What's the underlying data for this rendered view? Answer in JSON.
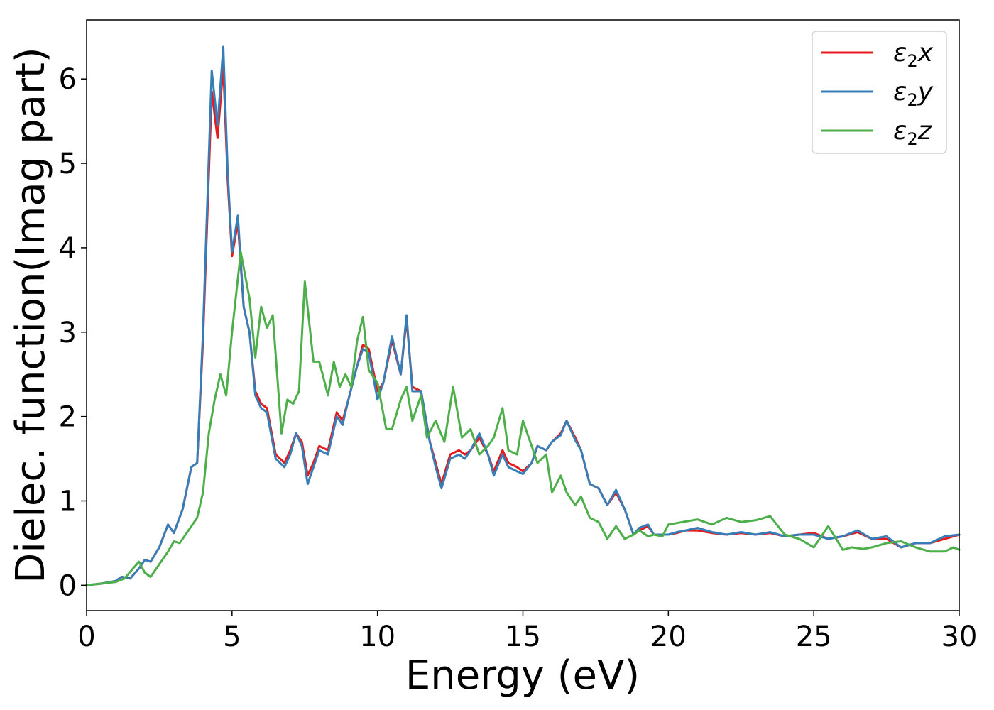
{
  "chart_data": {
    "type": "line",
    "xlabel": "Energy (eV)",
    "ylabel": "Dielec. function(Imag part)",
    "xlim": [
      0,
      30
    ],
    "ylim": [
      -0.3,
      6.7
    ],
    "xticks": [
      "0",
      "5",
      "10",
      "15",
      "20",
      "25",
      "30"
    ],
    "yticks": [
      "0",
      "1",
      "2",
      "3",
      "4",
      "5",
      "6"
    ],
    "grid": false,
    "legend_position": "top-right",
    "series": [
      {
        "name": "ε₂x",
        "legend": {
          "base": "ε",
          "sub": "2",
          "tail": "x"
        },
        "color": "#e41a1c",
        "x": [
          0,
          0.5,
          1.0,
          1.2,
          1.5,
          1.8,
          2.0,
          2.2,
          2.5,
          2.8,
          3.0,
          3.3,
          3.6,
          3.8,
          4.0,
          4.3,
          4.5,
          4.7,
          4.85,
          5.0,
          5.2,
          5.4,
          5.6,
          5.8,
          6.0,
          6.2,
          6.5,
          6.8,
          7.0,
          7.2,
          7.4,
          7.6,
          7.8,
          8.0,
          8.3,
          8.6,
          8.8,
          9.0,
          9.3,
          9.5,
          9.7,
          10.0,
          10.2,
          10.5,
          10.8,
          11.0,
          11.2,
          11.5,
          11.8,
          12.0,
          12.2,
          12.5,
          12.8,
          13.0,
          13.2,
          13.5,
          13.8,
          14.0,
          14.3,
          14.5,
          14.8,
          15.0,
          15.3,
          15.5,
          15.8,
          16.0,
          16.3,
          16.5,
          16.8,
          17.0,
          17.3,
          17.6,
          17.9,
          18.2,
          18.5,
          18.8,
          19.0,
          19.3,
          19.5,
          19.8,
          20.0,
          20.3,
          20.6,
          21.0,
          21.5,
          22.0,
          22.5,
          23.0,
          23.5,
          24.0,
          24.5,
          25.0,
          25.5,
          26.0,
          26.5,
          27.0,
          27.5,
          28.0,
          28.5,
          29.0,
          29.5,
          30.0
        ],
        "y": [
          0.0,
          0.02,
          0.05,
          0.1,
          0.08,
          0.2,
          0.3,
          0.28,
          0.45,
          0.72,
          0.62,
          0.9,
          1.4,
          1.45,
          2.9,
          5.85,
          5.3,
          6.15,
          4.8,
          3.9,
          4.3,
          3.3,
          3.0,
          2.3,
          2.15,
          2.1,
          1.55,
          1.45,
          1.6,
          1.8,
          1.7,
          1.3,
          1.45,
          1.65,
          1.6,
          2.05,
          1.95,
          2.2,
          2.6,
          2.85,
          2.8,
          2.3,
          2.4,
          2.9,
          2.5,
          3.15,
          2.35,
          2.3,
          1.7,
          1.45,
          1.2,
          1.55,
          1.6,
          1.55,
          1.6,
          1.75,
          1.55,
          1.35,
          1.6,
          1.45,
          1.4,
          1.35,
          1.45,
          1.65,
          1.6,
          1.7,
          1.8,
          1.95,
          1.75,
          1.6,
          1.2,
          1.15,
          0.95,
          1.1,
          0.9,
          0.6,
          0.65,
          0.7,
          0.6,
          0.6,
          0.6,
          0.62,
          0.65,
          0.65,
          0.62,
          0.6,
          0.62,
          0.6,
          0.62,
          0.58,
          0.6,
          0.62,
          0.55,
          0.58,
          0.63,
          0.55,
          0.55,
          0.45,
          0.5,
          0.5,
          0.55,
          0.6
        ]
      },
      {
        "name": "ε₂y",
        "legend": {
          "base": "ε",
          "sub": "2",
          "tail": "y"
        },
        "color": "#377eb8",
        "x": [
          0,
          0.5,
          1.0,
          1.2,
          1.5,
          1.8,
          2.0,
          2.2,
          2.5,
          2.8,
          3.0,
          3.3,
          3.6,
          3.8,
          4.0,
          4.3,
          4.5,
          4.7,
          4.85,
          5.0,
          5.2,
          5.4,
          5.6,
          5.8,
          6.0,
          6.2,
          6.5,
          6.8,
          7.0,
          7.2,
          7.4,
          7.6,
          7.8,
          8.0,
          8.3,
          8.6,
          8.8,
          9.0,
          9.3,
          9.5,
          9.7,
          10.0,
          10.2,
          10.5,
          10.8,
          11.0,
          11.2,
          11.5,
          11.8,
          12.0,
          12.2,
          12.5,
          12.8,
          13.0,
          13.2,
          13.5,
          13.8,
          14.0,
          14.3,
          14.5,
          14.8,
          15.0,
          15.3,
          15.5,
          15.8,
          16.0,
          16.3,
          16.5,
          16.8,
          17.0,
          17.3,
          17.6,
          17.9,
          18.2,
          18.5,
          18.8,
          19.0,
          19.3,
          19.5,
          19.8,
          20.0,
          20.3,
          20.6,
          21.0,
          21.5,
          22.0,
          22.5,
          23.0,
          23.5,
          24.0,
          24.5,
          25.0,
          25.5,
          26.0,
          26.5,
          27.0,
          27.5,
          28.0,
          28.5,
          29.0,
          29.5,
          30.0
        ],
        "y": [
          0.0,
          0.02,
          0.05,
          0.1,
          0.08,
          0.2,
          0.3,
          0.28,
          0.45,
          0.72,
          0.62,
          0.9,
          1.4,
          1.45,
          3.0,
          6.1,
          5.45,
          6.38,
          4.9,
          3.95,
          4.38,
          3.3,
          3.0,
          2.25,
          2.1,
          2.05,
          1.5,
          1.4,
          1.55,
          1.8,
          1.65,
          1.2,
          1.4,
          1.6,
          1.55,
          2.0,
          1.9,
          2.2,
          2.6,
          2.8,
          2.75,
          2.2,
          2.4,
          2.95,
          2.5,
          3.2,
          2.3,
          2.3,
          1.7,
          1.4,
          1.15,
          1.5,
          1.55,
          1.5,
          1.6,
          1.8,
          1.55,
          1.3,
          1.55,
          1.4,
          1.35,
          1.32,
          1.45,
          1.65,
          1.6,
          1.7,
          1.78,
          1.95,
          1.72,
          1.6,
          1.2,
          1.15,
          0.95,
          1.13,
          0.9,
          0.6,
          0.68,
          0.72,
          0.6,
          0.6,
          0.6,
          0.63,
          0.65,
          0.68,
          0.63,
          0.6,
          0.63,
          0.6,
          0.63,
          0.58,
          0.6,
          0.6,
          0.55,
          0.58,
          0.65,
          0.55,
          0.58,
          0.45,
          0.5,
          0.5,
          0.58,
          0.6
        ]
      },
      {
        "name": "ε₂z",
        "legend": {
          "base": "ε",
          "sub": "2",
          "tail": "z"
        },
        "color": "#4daf4a",
        "x": [
          0,
          0.5,
          1.0,
          1.3,
          1.6,
          1.8,
          2.0,
          2.2,
          2.5,
          2.8,
          3.0,
          3.2,
          3.5,
          3.8,
          4.0,
          4.2,
          4.4,
          4.6,
          4.8,
          5.0,
          5.3,
          5.6,
          5.8,
          6.0,
          6.2,
          6.4,
          6.7,
          6.9,
          7.1,
          7.3,
          7.5,
          7.8,
          8.0,
          8.3,
          8.5,
          8.7,
          8.9,
          9.1,
          9.3,
          9.5,
          9.7,
          10.0,
          10.3,
          10.5,
          10.8,
          11.0,
          11.2,
          11.5,
          11.7,
          12.0,
          12.3,
          12.6,
          12.9,
          13.2,
          13.5,
          13.8,
          14.0,
          14.3,
          14.5,
          14.8,
          15.0,
          15.3,
          15.5,
          15.8,
          16.0,
          16.3,
          16.5,
          16.8,
          17.0,
          17.3,
          17.6,
          17.9,
          18.2,
          18.5,
          18.8,
          19.0,
          19.3,
          19.5,
          19.8,
          20.0,
          20.5,
          21.0,
          21.5,
          22.0,
          22.5,
          23.0,
          23.5,
          24.0,
          24.5,
          25.0,
          25.5,
          26.0,
          26.3,
          26.7,
          27.0,
          27.5,
          28.0,
          28.5,
          29.0,
          29.5,
          29.8,
          30.0
        ],
        "y": [
          0.0,
          0.02,
          0.04,
          0.08,
          0.2,
          0.28,
          0.15,
          0.1,
          0.25,
          0.4,
          0.52,
          0.5,
          0.65,
          0.8,
          1.1,
          1.8,
          2.2,
          2.5,
          2.25,
          3.0,
          3.95,
          3.4,
          2.7,
          3.3,
          3.05,
          3.2,
          1.8,
          2.2,
          2.15,
          2.3,
          3.6,
          2.65,
          2.65,
          2.25,
          2.65,
          2.35,
          2.5,
          2.35,
          2.9,
          3.18,
          2.55,
          2.4,
          1.85,
          1.85,
          2.2,
          2.35,
          1.95,
          2.25,
          1.75,
          1.95,
          1.7,
          2.35,
          1.75,
          1.85,
          1.55,
          1.65,
          1.75,
          2.1,
          1.6,
          1.55,
          1.95,
          1.65,
          1.45,
          1.55,
          1.1,
          1.3,
          1.1,
          0.95,
          1.05,
          0.8,
          0.75,
          0.55,
          0.7,
          0.55,
          0.6,
          0.65,
          0.58,
          0.6,
          0.58,
          0.72,
          0.75,
          0.78,
          0.72,
          0.8,
          0.75,
          0.77,
          0.82,
          0.6,
          0.55,
          0.45,
          0.7,
          0.42,
          0.45,
          0.43,
          0.45,
          0.5,
          0.52,
          0.45,
          0.4,
          0.4,
          0.45,
          0.42
        ]
      }
    ]
  }
}
